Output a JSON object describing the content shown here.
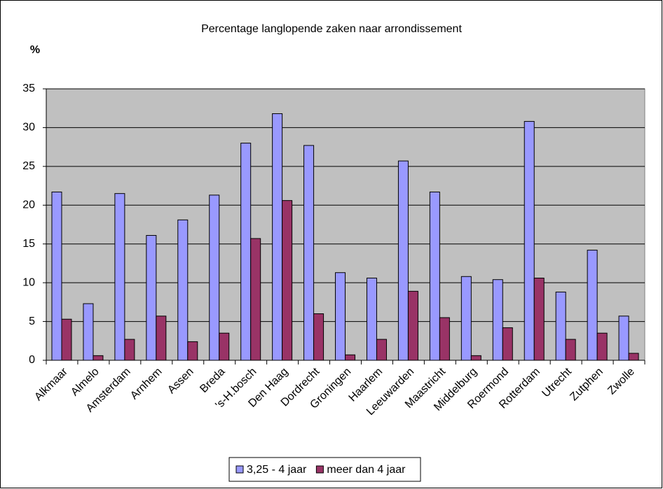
{
  "chart_data": {
    "type": "bar",
    "title": "Percentage langlopende zaken naar arrondissement",
    "y_label": "%",
    "categories": [
      "Alkmaar",
      "Almelo",
      "Amsterdam",
      "Arnhem",
      "Assen",
      "Breda",
      "'s-H.bosch",
      "Den Haag",
      "Dordrecht",
      "Groningen",
      "Haarlem",
      "Leeuwarden",
      "Maastricht",
      "Middelburg",
      "Roermond",
      "Rotterdam",
      "Utrecht",
      "Zutphen",
      "Zwolle"
    ],
    "series": [
      {
        "name": "3,25 - 4 jaar",
        "color": "#9999ff",
        "values": [
          21.7,
          7.3,
          21.5,
          16.1,
          18.1,
          21.3,
          28.0,
          31.8,
          27.7,
          11.3,
          10.6,
          25.7,
          21.7,
          10.8,
          10.4,
          30.8,
          8.8,
          14.2,
          5.7
        ]
      },
      {
        "name": "meer dan 4 jaar",
        "color": "#993366",
        "values": [
          5.3,
          0.6,
          2.7,
          5.7,
          2.4,
          3.5,
          15.7,
          20.6,
          6.0,
          0.7,
          2.7,
          8.9,
          5.5,
          0.6,
          4.2,
          10.6,
          2.7,
          3.5,
          0.9
        ]
      }
    ],
    "ylim": [
      0,
      35
    ],
    "yticks": [
      0,
      5,
      10,
      15,
      20,
      25,
      30,
      35
    ],
    "grid": true,
    "legend": "bottom"
  }
}
